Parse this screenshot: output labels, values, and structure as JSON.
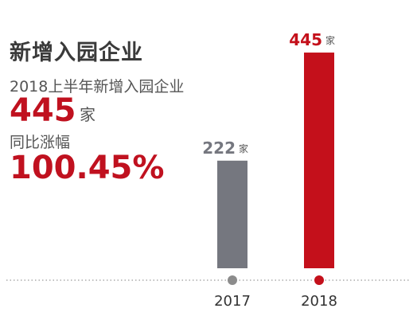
{
  "headline": {
    "title": "新增入园企业",
    "subtitle": "2018上半年新增入园企业",
    "count_value": "445",
    "count_unit": "家",
    "growth_label": "同比涨幅",
    "growth_value": "100.45%"
  },
  "chart_data": {
    "type": "bar",
    "categories": [
      "2017",
      "2018"
    ],
    "values": [
      222,
      445
    ],
    "value_labels": [
      "222",
      "445"
    ],
    "unit_label": "家",
    "ylim": [
      0,
      450
    ],
    "colors": [
      "#75777f",
      "#c4101b"
    ],
    "dot_colors": [
      "#8c8c8c",
      "#c4101b"
    ],
    "grid": false,
    "legend": "none"
  }
}
